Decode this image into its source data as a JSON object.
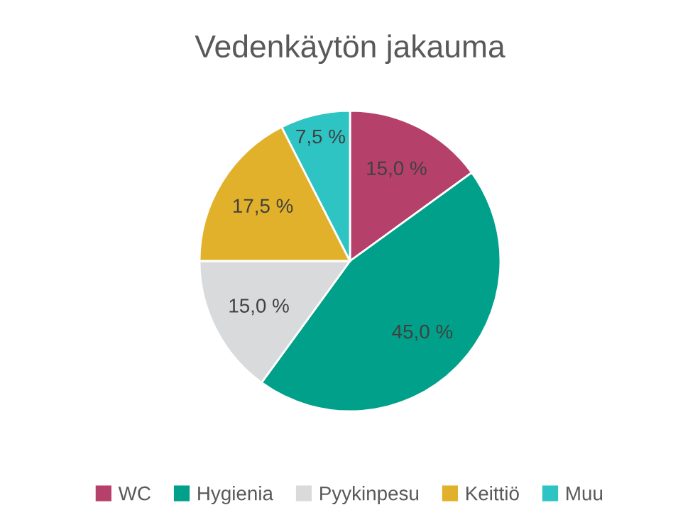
{
  "chart_data": {
    "type": "pie",
    "title": "Vedenkäytön jakauma",
    "categories": [
      "WC",
      "Hygienia",
      "Pyykinpesu",
      "Keittiö",
      "Muu"
    ],
    "values": [
      15.0,
      45.0,
      15.0,
      17.5,
      7.5
    ],
    "value_labels": [
      "15,0 %",
      "45,0 %",
      "15,0 %",
      "17,5 %",
      "7,5 %"
    ],
    "colors": [
      "#b5416a",
      "#00a08a",
      "#d9dadc",
      "#e2b12b",
      "#2ec4c4"
    ],
    "legend": "bottom"
  }
}
